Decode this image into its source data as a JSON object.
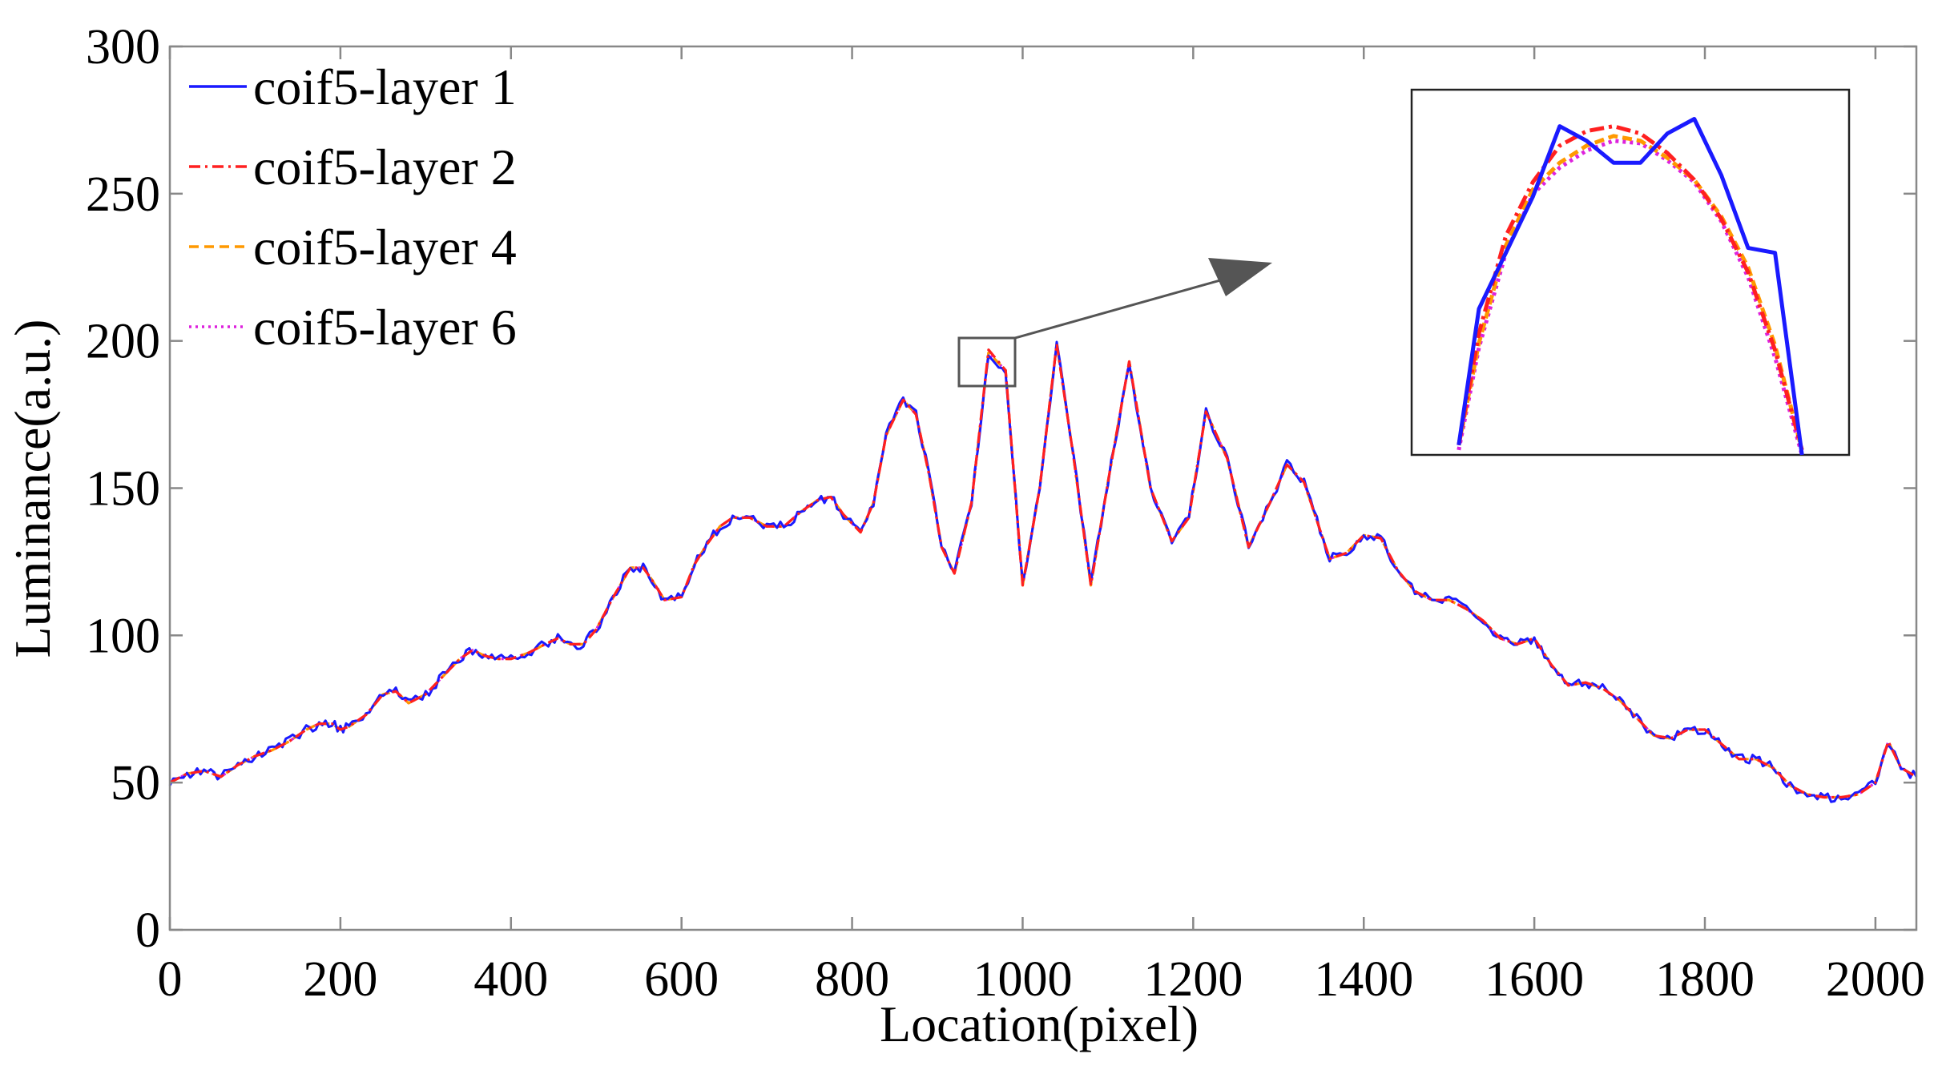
{
  "chart_data": {
    "type": "line",
    "title": "",
    "xlabel": "Location(pixel)",
    "ylabel": "Luminance(a.u.)",
    "xlim": [
      0,
      2048
    ],
    "ylim": [
      0,
      300
    ],
    "xticks": [
      0,
      200,
      400,
      600,
      800,
      1000,
      1200,
      1400,
      1600,
      1800,
      2000
    ],
    "yticks": [
      0,
      50,
      100,
      150,
      200,
      250,
      300
    ],
    "grid": false,
    "legend_position": "top-left",
    "x": [
      0,
      20,
      40,
      60,
      80,
      100,
      120,
      140,
      160,
      175,
      190,
      200,
      210,
      230,
      250,
      265,
      280,
      300,
      320,
      340,
      355,
      370,
      385,
      400,
      420,
      440,
      455,
      470,
      485,
      500,
      520,
      540,
      555,
      565,
      580,
      600,
      615,
      630,
      645,
      660,
      680,
      700,
      720,
      740,
      760,
      775,
      790,
      810,
      825,
      840,
      860,
      875,
      890,
      905,
      920,
      940,
      960,
      980,
      1000,
      1020,
      1040,
      1060,
      1080,
      1100,
      1125,
      1150,
      1175,
      1195,
      1215,
      1240,
      1265,
      1290,
      1310,
      1330,
      1360,
      1380,
      1400,
      1420,
      1440,
      1460,
      1480,
      1500,
      1520,
      1540,
      1560,
      1580,
      1600,
      1620,
      1640,
      1660,
      1680,
      1700,
      1720,
      1740,
      1760,
      1780,
      1800,
      1820,
      1840,
      1860,
      1880,
      1900,
      1920,
      1940,
      1960,
      1980,
      2000,
      2015,
      2030,
      2048
    ],
    "series": [
      {
        "name": "coif5-layer 1",
        "color": "#1a1aff",
        "dash": "solid",
        "values": [
          50,
          53,
          54,
          52,
          56,
          59,
          61,
          64,
          68,
          70,
          70,
          68,
          69,
          73,
          80,
          81,
          77,
          80,
          86,
          92,
          95,
          93,
          92,
          92,
          94,
          97,
          99,
          97,
          97,
          102,
          113,
          123,
          123,
          119,
          112,
          113,
          124,
          131,
          137,
          140,
          140,
          137,
          137,
          142,
          146,
          147,
          141,
          135,
          145,
          168,
          180,
          175,
          155,
          130,
          121,
          145,
          195,
          190,
          117,
          150,
          199,
          160,
          117,
          152,
          193,
          150,
          132,
          140,
          176,
          160,
          130,
          145,
          158,
          152,
          126,
          128,
          134,
          133,
          122,
          115,
          112,
          112,
          109,
          105,
          99,
          97,
          99,
          90,
          83,
          84,
          82,
          78,
          72,
          66,
          65,
          68,
          68,
          63,
          58,
          58,
          55,
          49,
          46,
          45,
          45,
          46,
          50,
          64,
          55,
          52
        ]
      },
      {
        "name": "coif5-layer 2",
        "color": "#ff2020",
        "dash": "dashdot",
        "values": [
          50,
          53,
          54,
          52,
          56,
          59,
          61,
          64,
          68,
          70,
          70,
          68,
          69,
          73,
          80,
          81,
          77,
          80,
          86,
          92,
          95,
          93,
          92,
          92,
          94,
          97,
          99,
          97,
          97,
          102,
          113,
          123,
          123,
          119,
          112,
          113,
          124,
          131,
          137,
          140,
          140,
          137,
          137,
          142,
          146,
          147,
          141,
          135,
          145,
          168,
          180,
          175,
          155,
          130,
          121,
          145,
          197,
          190,
          117,
          150,
          199,
          160,
          117,
          152,
          193,
          150,
          132,
          140,
          176,
          160,
          130,
          145,
          158,
          152,
          126,
          128,
          134,
          133,
          122,
          115,
          112,
          112,
          109,
          105,
          99,
          97,
          99,
          90,
          83,
          84,
          82,
          78,
          72,
          66,
          65,
          68,
          68,
          63,
          58,
          58,
          55,
          49,
          46,
          45,
          45,
          46,
          50,
          64,
          55,
          52
        ]
      },
      {
        "name": "coif5-layer 4",
        "color": "#ff9900",
        "dash": "dashed",
        "values": [
          50,
          53,
          54,
          52,
          56,
          59,
          61,
          64,
          68,
          70,
          70,
          68,
          69,
          73,
          80,
          81,
          77,
          80,
          86,
          92,
          95,
          93,
          92,
          92,
          94,
          97,
          99,
          97,
          97,
          102,
          113,
          123,
          123,
          119,
          112,
          113,
          124,
          131,
          137,
          140,
          140,
          137,
          137,
          142,
          146,
          147,
          141,
          135,
          145,
          168,
          180,
          175,
          155,
          130,
          121,
          145,
          196,
          190,
          117,
          150,
          199,
          160,
          117,
          152,
          193,
          150,
          132,
          140,
          176,
          160,
          130,
          145,
          158,
          152,
          126,
          128,
          134,
          133,
          122,
          115,
          112,
          112,
          109,
          105,
          99,
          97,
          99,
          90,
          83,
          84,
          82,
          78,
          72,
          66,
          65,
          68,
          68,
          63,
          58,
          58,
          55,
          49,
          46,
          45,
          45,
          46,
          50,
          64,
          55,
          52
        ]
      },
      {
        "name": "coif5-layer 6",
        "color": "#dd22dd",
        "dash": "dotted",
        "values": [
          50,
          53,
          54,
          52,
          56,
          59,
          61,
          64,
          68,
          70,
          70,
          68,
          69,
          73,
          80,
          81,
          77,
          80,
          86,
          92,
          95,
          93,
          92,
          92,
          94,
          97,
          99,
          97,
          97,
          102,
          113,
          123,
          123,
          119,
          112,
          113,
          124,
          131,
          137,
          140,
          140,
          137,
          137,
          142,
          146,
          147,
          141,
          135,
          145,
          168,
          180,
          175,
          155,
          130,
          121,
          145,
          196,
          190,
          117,
          150,
          199,
          160,
          117,
          152,
          193,
          150,
          132,
          140,
          176,
          160,
          130,
          145,
          158,
          152,
          126,
          128,
          134,
          133,
          122,
          115,
          112,
          112,
          109,
          105,
          99,
          97,
          99,
          90,
          83,
          84,
          82,
          78,
          72,
          66,
          65,
          68,
          68,
          63,
          58,
          58,
          55,
          49,
          46,
          45,
          45,
          46,
          50,
          64,
          55,
          52
        ]
      }
    ],
    "zoom_inset": {
      "source_xlim": [
        930,
        995
      ],
      "source_ylim": [
        188,
        203
      ],
      "x": [
        937,
        940,
        944,
        948,
        952,
        956,
        960,
        964,
        968,
        972,
        976,
        980,
        984,
        988
      ],
      "series": [
        {
          "name": "coif5-layer 1",
          "values": [
            188.4,
            194.0,
            196.3,
            198.6,
            201.5,
            200.9,
            200.0,
            200.0,
            201.2,
            201.8,
            199.5,
            196.5,
            196.3,
            188.0
          ]
        },
        {
          "name": "coif5-layer 2",
          "values": [
            188.4,
            193.0,
            197.0,
            199.2,
            200.7,
            201.3,
            201.5,
            201.2,
            200.4,
            199.3,
            197.7,
            195.5,
            192.3,
            188.2
          ]
        },
        {
          "name": "coif5-layer 4",
          "values": [
            188.4,
            192.6,
            196.6,
            198.9,
            200.0,
            200.7,
            201.1,
            200.9,
            200.2,
            199.3,
            197.8,
            195.7,
            192.5,
            188.2
          ]
        },
        {
          "name": "coif5-layer 6",
          "values": [
            188.2,
            192.4,
            196.3,
            198.7,
            199.8,
            200.5,
            200.9,
            200.8,
            200.1,
            199.2,
            197.6,
            195.3,
            192.0,
            188.0
          ]
        }
      ]
    }
  }
}
